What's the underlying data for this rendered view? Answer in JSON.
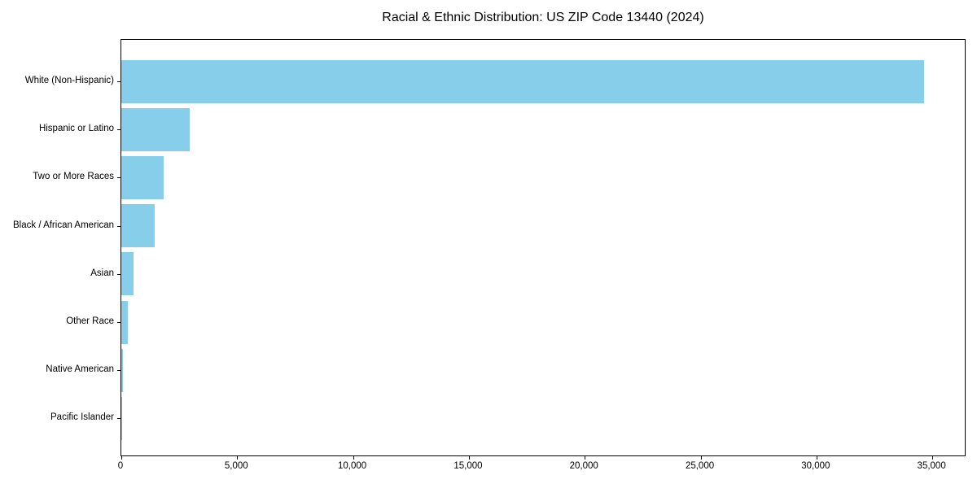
{
  "title": "Racial & Ethnic Distribution: US ZIP Code 13440 (2024)",
  "colors": {
    "bar": "#87CEEB",
    "axis": "#000000",
    "background": "#FFFFFF",
    "text": "#000000"
  },
  "chart_data": {
    "type": "bar",
    "orientation": "horizontal",
    "title": "Racial & Ethnic Distribution: US ZIP Code 13440 (2024)",
    "categories": [
      "White (Non-Hispanic)",
      "Hispanic or Latino",
      "Two or More Races",
      "Black / African American",
      "Asian",
      "Other Race",
      "Native American",
      "Pacific Islander"
    ],
    "values": [
      34650,
      2950,
      1820,
      1430,
      540,
      280,
      70,
      15
    ],
    "xlabel": "",
    "ylabel": "",
    "xlim": [
      0,
      36400
    ],
    "x_ticks": [
      0,
      5000,
      10000,
      15000,
      20000,
      25000,
      30000,
      35000
    ],
    "x_tick_labels": [
      "0",
      "5,000",
      "10,000",
      "15,000",
      "20,000",
      "25,000",
      "30,000",
      "35,000"
    ],
    "grid": false,
    "legend": null,
    "bar_color": "#87CEEB",
    "largest_bar_on_top": true
  }
}
